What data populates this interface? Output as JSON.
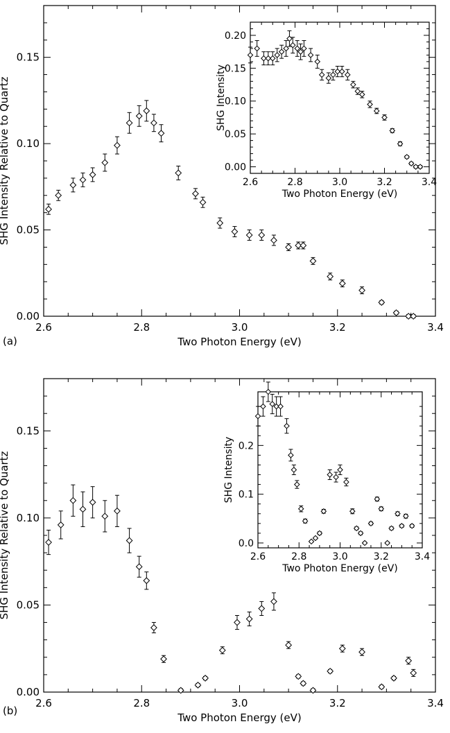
{
  "chart_data": [
    {
      "panel": "(a)",
      "type": "scatter",
      "xlabel": "Two Photon Energy (eV)",
      "ylabel": "SHG Intensity Relative to Quartz",
      "xlim": [
        2.6,
        3.4
      ],
      "ylim": [
        0.0,
        0.18
      ],
      "xticks": [
        "2.6",
        "2.8",
        "3.0",
        "3.2",
        "3.4"
      ],
      "yticks": [
        "0.00",
        "0.05",
        "0.10",
        "0.15"
      ],
      "x": [
        2.61,
        2.63,
        2.66,
        2.68,
        2.7,
        2.725,
        2.75,
        2.775,
        2.795,
        2.81,
        2.825,
        2.84,
        2.875,
        2.91,
        2.925,
        2.96,
        2.99,
        3.02,
        3.045,
        3.07,
        3.1,
        3.12,
        3.13,
        3.15,
        3.185,
        3.21,
        3.25,
        3.29,
        3.32,
        3.345,
        3.355
      ],
      "y": [
        0.062,
        0.07,
        0.076,
        0.079,
        0.082,
        0.089,
        0.099,
        0.112,
        0.116,
        0.119,
        0.112,
        0.106,
        0.083,
        0.071,
        0.066,
        0.054,
        0.049,
        0.047,
        0.047,
        0.044,
        0.04,
        0.041,
        0.041,
        0.032,
        0.023,
        0.019,
        0.015,
        0.008,
        0.002,
        0.0,
        0.0
      ],
      "err": [
        0.003,
        0.003,
        0.004,
        0.004,
        0.004,
        0.005,
        0.005,
        0.006,
        0.006,
        0.006,
        0.005,
        0.005,
        0.004,
        0.003,
        0.003,
        0.003,
        0.003,
        0.003,
        0.003,
        0.003,
        0.002,
        0.002,
        0.002,
        0.002,
        0.002,
        0.002,
        0.002,
        0.001,
        0.001,
        0.001,
        0.001
      ],
      "inset": {
        "type": "scatter",
        "xlabel": "Two Photon Energy (eV)",
        "ylabel": "SHG Intensity",
        "xlim": [
          2.6,
          3.4
        ],
        "ylim": [
          -0.01,
          0.22
        ],
        "xticks": [
          "2.6",
          "2.8",
          "3.0",
          "3.2",
          "3.4"
        ],
        "yticks": [
          "0.00",
          "0.05",
          "0.10",
          "0.15",
          "0.20"
        ],
        "x": [
          2.6,
          2.63,
          2.66,
          2.68,
          2.7,
          2.72,
          2.74,
          2.76,
          2.775,
          2.79,
          2.81,
          2.825,
          2.84,
          2.87,
          2.9,
          2.92,
          2.95,
          2.97,
          2.99,
          3.01,
          3.035,
          3.06,
          3.08,
          3.1,
          3.135,
          3.165,
          3.2,
          3.235,
          3.27,
          3.3,
          3.32,
          3.34,
          3.36
        ],
        "y": [
          0.17,
          0.18,
          0.165,
          0.165,
          0.165,
          0.17,
          0.175,
          0.18,
          0.195,
          0.185,
          0.18,
          0.175,
          0.18,
          0.17,
          0.16,
          0.14,
          0.135,
          0.14,
          0.145,
          0.145,
          0.14,
          0.125,
          0.115,
          0.11,
          0.095,
          0.085,
          0.075,
          0.055,
          0.035,
          0.015,
          0.005,
          0.0,
          0.0
        ],
        "err": [
          0.012,
          0.012,
          0.01,
          0.01,
          0.01,
          0.01,
          0.01,
          0.012,
          0.012,
          0.012,
          0.012,
          0.012,
          0.012,
          0.01,
          0.01,
          0.008,
          0.008,
          0.008,
          0.008,
          0.008,
          0.008,
          0.005,
          0.005,
          0.005,
          0.005,
          0.004,
          0.004,
          0.003,
          0.003,
          0.002,
          0.002,
          0.002,
          0.002
        ]
      }
    },
    {
      "panel": "(b)",
      "type": "scatter",
      "xlabel": "Two Photon Energy (eV)",
      "ylabel": "SHG Intensity Relative to Quartz",
      "xlim": [
        2.6,
        3.4
      ],
      "ylim": [
        0.0,
        0.18
      ],
      "xticks": [
        "2.6",
        "2.8",
        "3.0",
        "3.2",
        "3.4"
      ],
      "yticks": [
        "0.00",
        "0.05",
        "0.10",
        "0.15"
      ],
      "x": [
        2.61,
        2.635,
        2.66,
        2.68,
        2.7,
        2.725,
        2.75,
        2.775,
        2.795,
        2.81,
        2.825,
        2.845,
        2.88,
        2.915,
        2.93,
        2.965,
        2.995,
        3.02,
        3.045,
        3.07,
        3.1,
        3.12,
        3.13,
        3.15,
        3.185,
        3.21,
        3.25,
        3.29,
        3.315,
        3.345,
        3.355
      ],
      "y": [
        0.086,
        0.096,
        0.11,
        0.105,
        0.109,
        0.101,
        0.104,
        0.087,
        0.072,
        0.064,
        0.037,
        0.019,
        0.001,
        0.004,
        0.008,
        0.024,
        0.04,
        0.042,
        0.048,
        0.052,
        0.027,
        0.009,
        0.005,
        0.001,
        0.012,
        0.025,
        0.023,
        0.003,
        0.008,
        0.018,
        0.011
      ],
      "err": [
        0.007,
        0.008,
        0.009,
        0.01,
        0.009,
        0.009,
        0.009,
        0.007,
        0.006,
        0.005,
        0.003,
        0.002,
        0.001,
        0.001,
        0.001,
        0.002,
        0.004,
        0.004,
        0.004,
        0.005,
        0.002,
        0.001,
        0.001,
        0.001,
        0.001,
        0.002,
        0.002,
        0.001,
        0.001,
        0.002,
        0.002
      ]
    },
    {
      "panel": "(b) inset",
      "type": "scatter",
      "xlabel": "Two Photon Energy (eV)",
      "ylabel": "SHG Intensity",
      "xlim": [
        2.6,
        3.4
      ],
      "ylim": [
        -0.01,
        0.31
      ],
      "xticks": [
        "2.6",
        "2.8",
        "3.0",
        "3.2",
        "3.4"
      ],
      "yticks": [
        "0.0",
        "0.1",
        "0.2"
      ],
      "x": [
        2.6,
        2.625,
        2.65,
        2.67,
        2.69,
        2.71,
        2.74,
        2.76,
        2.775,
        2.79,
        2.81,
        2.83,
        2.86,
        2.88,
        2.9,
        2.92,
        2.95,
        2.98,
        3.0,
        3.03,
        3.06,
        3.08,
        3.1,
        3.12,
        3.15,
        3.18,
        3.2,
        3.23,
        3.25,
        3.28,
        3.3,
        3.32,
        3.35
      ],
      "y": [
        0.26,
        0.28,
        0.31,
        0.285,
        0.28,
        0.28,
        0.24,
        0.18,
        0.15,
        0.12,
        0.07,
        0.045,
        0.003,
        0.01,
        0.02,
        0.065,
        0.14,
        0.135,
        0.15,
        0.125,
        0.065,
        0.03,
        0.02,
        0.0,
        0.04,
        0.09,
        0.07,
        0.0,
        0.03,
        0.06,
        0.035,
        0.055,
        0.035
      ],
      "err": [
        0.02,
        0.02,
        0.02,
        0.02,
        0.02,
        0.02,
        0.015,
        0.012,
        0.01,
        0.008,
        0.006,
        0.004,
        0.002,
        0.002,
        0.003,
        0.004,
        0.01,
        0.01,
        0.01,
        0.008,
        0.005,
        0.003,
        0.003,
        0.002,
        0.003,
        0.004,
        0.004,
        0.002,
        0.003,
        0.004,
        0.003,
        0.004,
        0.003
      ]
    }
  ]
}
